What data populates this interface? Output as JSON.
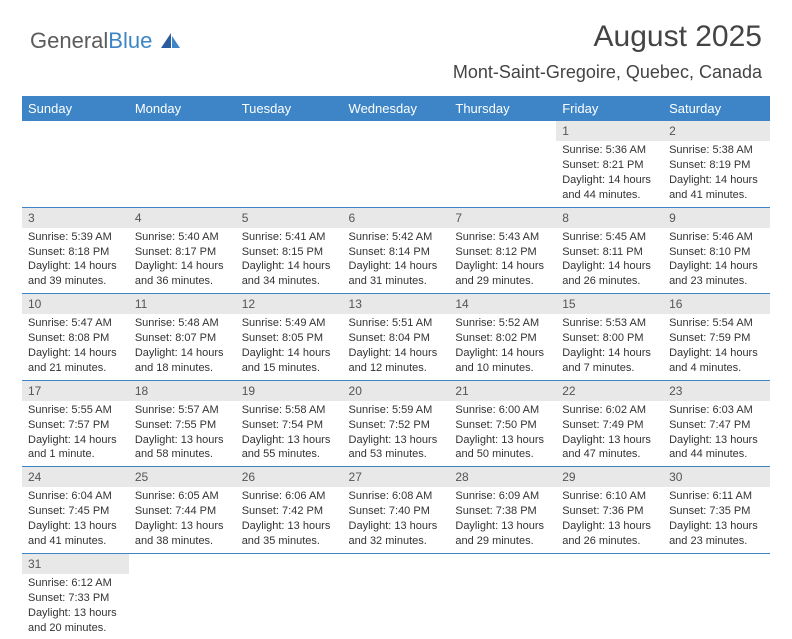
{
  "logo": {
    "text1": "General",
    "text2": "Blue"
  },
  "title": "August 2025",
  "location": "Mont-Saint-Gregoire, Quebec, Canada",
  "colors": {
    "header_bg": "#3d85c6",
    "header_text": "#ffffff",
    "daynum_bg": "#e8e8e8",
    "border": "#3d85c6",
    "text": "#333333",
    "logo_gray": "#5c5c5c",
    "logo_blue": "#3d85c6"
  },
  "fonts": {
    "title_size": 30,
    "location_size": 18,
    "header_size": 13,
    "cell_size": 11,
    "daynum_size": 12
  },
  "day_headers": [
    "Sunday",
    "Monday",
    "Tuesday",
    "Wednesday",
    "Thursday",
    "Friday",
    "Saturday"
  ],
  "weeks": [
    [
      null,
      null,
      null,
      null,
      null,
      {
        "n": "1",
        "sr": "Sunrise: 5:36 AM",
        "ss": "Sunset: 8:21 PM",
        "dl": "Daylight: 14 hours and 44 minutes."
      },
      {
        "n": "2",
        "sr": "Sunrise: 5:38 AM",
        "ss": "Sunset: 8:19 PM",
        "dl": "Daylight: 14 hours and 41 minutes."
      }
    ],
    [
      {
        "n": "3",
        "sr": "Sunrise: 5:39 AM",
        "ss": "Sunset: 8:18 PM",
        "dl": "Daylight: 14 hours and 39 minutes."
      },
      {
        "n": "4",
        "sr": "Sunrise: 5:40 AM",
        "ss": "Sunset: 8:17 PM",
        "dl": "Daylight: 14 hours and 36 minutes."
      },
      {
        "n": "5",
        "sr": "Sunrise: 5:41 AM",
        "ss": "Sunset: 8:15 PM",
        "dl": "Daylight: 14 hours and 34 minutes."
      },
      {
        "n": "6",
        "sr": "Sunrise: 5:42 AM",
        "ss": "Sunset: 8:14 PM",
        "dl": "Daylight: 14 hours and 31 minutes."
      },
      {
        "n": "7",
        "sr": "Sunrise: 5:43 AM",
        "ss": "Sunset: 8:12 PM",
        "dl": "Daylight: 14 hours and 29 minutes."
      },
      {
        "n": "8",
        "sr": "Sunrise: 5:45 AM",
        "ss": "Sunset: 8:11 PM",
        "dl": "Daylight: 14 hours and 26 minutes."
      },
      {
        "n": "9",
        "sr": "Sunrise: 5:46 AM",
        "ss": "Sunset: 8:10 PM",
        "dl": "Daylight: 14 hours and 23 minutes."
      }
    ],
    [
      {
        "n": "10",
        "sr": "Sunrise: 5:47 AM",
        "ss": "Sunset: 8:08 PM",
        "dl": "Daylight: 14 hours and 21 minutes."
      },
      {
        "n": "11",
        "sr": "Sunrise: 5:48 AM",
        "ss": "Sunset: 8:07 PM",
        "dl": "Daylight: 14 hours and 18 minutes."
      },
      {
        "n": "12",
        "sr": "Sunrise: 5:49 AM",
        "ss": "Sunset: 8:05 PM",
        "dl": "Daylight: 14 hours and 15 minutes."
      },
      {
        "n": "13",
        "sr": "Sunrise: 5:51 AM",
        "ss": "Sunset: 8:04 PM",
        "dl": "Daylight: 14 hours and 12 minutes."
      },
      {
        "n": "14",
        "sr": "Sunrise: 5:52 AM",
        "ss": "Sunset: 8:02 PM",
        "dl": "Daylight: 14 hours and 10 minutes."
      },
      {
        "n": "15",
        "sr": "Sunrise: 5:53 AM",
        "ss": "Sunset: 8:00 PM",
        "dl": "Daylight: 14 hours and 7 minutes."
      },
      {
        "n": "16",
        "sr": "Sunrise: 5:54 AM",
        "ss": "Sunset: 7:59 PM",
        "dl": "Daylight: 14 hours and 4 minutes."
      }
    ],
    [
      {
        "n": "17",
        "sr": "Sunrise: 5:55 AM",
        "ss": "Sunset: 7:57 PM",
        "dl": "Daylight: 14 hours and 1 minute."
      },
      {
        "n": "18",
        "sr": "Sunrise: 5:57 AM",
        "ss": "Sunset: 7:55 PM",
        "dl": "Daylight: 13 hours and 58 minutes."
      },
      {
        "n": "19",
        "sr": "Sunrise: 5:58 AM",
        "ss": "Sunset: 7:54 PM",
        "dl": "Daylight: 13 hours and 55 minutes."
      },
      {
        "n": "20",
        "sr": "Sunrise: 5:59 AM",
        "ss": "Sunset: 7:52 PM",
        "dl": "Daylight: 13 hours and 53 minutes."
      },
      {
        "n": "21",
        "sr": "Sunrise: 6:00 AM",
        "ss": "Sunset: 7:50 PM",
        "dl": "Daylight: 13 hours and 50 minutes."
      },
      {
        "n": "22",
        "sr": "Sunrise: 6:02 AM",
        "ss": "Sunset: 7:49 PM",
        "dl": "Daylight: 13 hours and 47 minutes."
      },
      {
        "n": "23",
        "sr": "Sunrise: 6:03 AM",
        "ss": "Sunset: 7:47 PM",
        "dl": "Daylight: 13 hours and 44 minutes."
      }
    ],
    [
      {
        "n": "24",
        "sr": "Sunrise: 6:04 AM",
        "ss": "Sunset: 7:45 PM",
        "dl": "Daylight: 13 hours and 41 minutes."
      },
      {
        "n": "25",
        "sr": "Sunrise: 6:05 AM",
        "ss": "Sunset: 7:44 PM",
        "dl": "Daylight: 13 hours and 38 minutes."
      },
      {
        "n": "26",
        "sr": "Sunrise: 6:06 AM",
        "ss": "Sunset: 7:42 PM",
        "dl": "Daylight: 13 hours and 35 minutes."
      },
      {
        "n": "27",
        "sr": "Sunrise: 6:08 AM",
        "ss": "Sunset: 7:40 PM",
        "dl": "Daylight: 13 hours and 32 minutes."
      },
      {
        "n": "28",
        "sr": "Sunrise: 6:09 AM",
        "ss": "Sunset: 7:38 PM",
        "dl": "Daylight: 13 hours and 29 minutes."
      },
      {
        "n": "29",
        "sr": "Sunrise: 6:10 AM",
        "ss": "Sunset: 7:36 PM",
        "dl": "Daylight: 13 hours and 26 minutes."
      },
      {
        "n": "30",
        "sr": "Sunrise: 6:11 AM",
        "ss": "Sunset: 7:35 PM",
        "dl": "Daylight: 13 hours and 23 minutes."
      }
    ],
    [
      {
        "n": "31",
        "sr": "Sunrise: 6:12 AM",
        "ss": "Sunset: 7:33 PM",
        "dl": "Daylight: 13 hours and 20 minutes."
      },
      null,
      null,
      null,
      null,
      null,
      null
    ]
  ]
}
